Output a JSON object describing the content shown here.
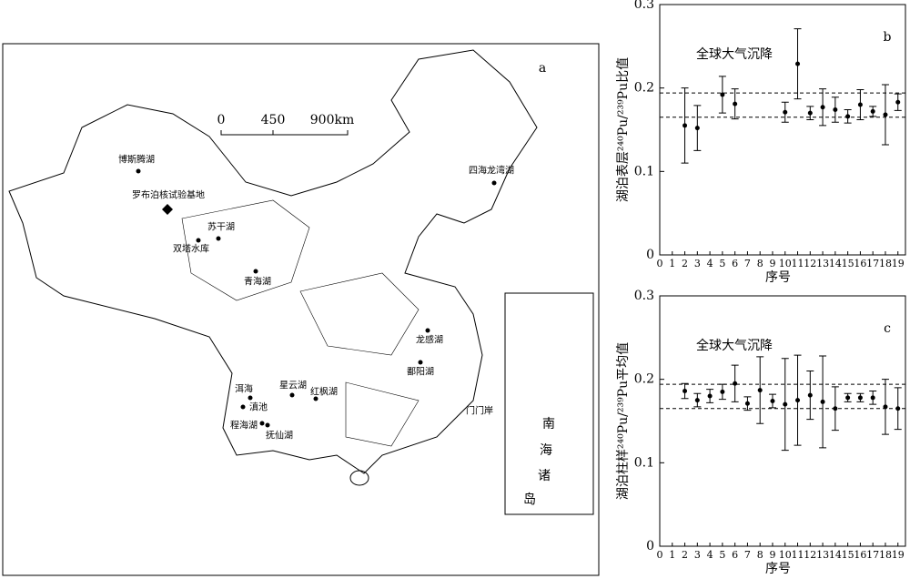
{
  "map": {
    "panel": "a",
    "scale_labels": [
      "0",
      "450",
      "900km"
    ],
    "places": [
      "博斯腾湖",
      "罗布泊核试验基地",
      "苏干湖",
      "双塔水库",
      "青海湖",
      "四海龙湾湖",
      "龙感湖",
      "鄱阳湖",
      "洱海",
      "滇池",
      "星云湖",
      "红枫湖",
      "程海湖",
      "抚仙湖",
      "门门岸"
    ],
    "inset_labels": [
      "南",
      "海",
      "诸",
      "岛"
    ]
  },
  "chart_data": [
    {
      "type": "scatter",
      "panel": "b",
      "annotation": "全球大气沉降",
      "y_label": "湖泊表层²⁴⁰Pu/²³⁹Pu比值",
      "x_label": "序号",
      "x": [
        2,
        3,
        5,
        6,
        10,
        11,
        12,
        13,
        14,
        15,
        16,
        17,
        18,
        19
      ],
      "values": [
        0.155,
        0.152,
        0.192,
        0.181,
        0.171,
        0.229,
        0.17,
        0.177,
        0.174,
        0.166,
        0.18,
        0.172,
        0.168,
        0.183
      ],
      "errors": [
        0.045,
        0.027,
        0.022,
        0.018,
        0.012,
        0.042,
        0.008,
        0.022,
        0.015,
        0.008,
        0.018,
        0.006,
        0.036,
        0.01
      ],
      "hlines": [
        0.165,
        0.194
      ],
      "color": "#000000",
      "xlim": [
        0,
        19.6
      ],
      "xticks": [
        0,
        1,
        2,
        3,
        4,
        5,
        6,
        7,
        8,
        9,
        10,
        11,
        12,
        13,
        14,
        15,
        16,
        17,
        18,
        19
      ],
      "ylim": [
        0,
        0.3
      ],
      "yticks": [
        0,
        0.1,
        0.2,
        0.3
      ]
    },
    {
      "type": "scatter",
      "panel": "c",
      "annotation": "全球大气沉降",
      "y_label": "湖泊柱样²⁴⁰Pu/²³⁹Pu平均值",
      "x_label": "序号",
      "x": [
        2,
        3,
        4,
        5,
        6,
        7,
        8,
        9,
        10,
        11,
        12,
        13,
        14,
        15,
        16,
        17,
        18,
        19
      ],
      "values": [
        0.186,
        0.175,
        0.18,
        0.185,
        0.195,
        0.171,
        0.187,
        0.174,
        0.17,
        0.175,
        0.181,
        0.173,
        0.165,
        0.178,
        0.178,
        0.178,
        0.167,
        0.165
      ],
      "errors": [
        0.009,
        0.008,
        0.008,
        0.009,
        0.022,
        0.008,
        0.04,
        0.008,
        0.055,
        0.054,
        0.029,
        0.055,
        0.026,
        0.005,
        0.005,
        0.008,
        0.033,
        0.025
      ],
      "hlines": [
        0.165,
        0.194
      ],
      "color": "#000000",
      "xlim": [
        0,
        19.6
      ],
      "xticks": [
        0,
        1,
        2,
        3,
        4,
        5,
        6,
        7,
        8,
        9,
        10,
        11,
        12,
        13,
        14,
        15,
        16,
        17,
        18,
        19
      ],
      "ylim": [
        0,
        0.3
      ],
      "yticks": [
        0,
        0.1,
        0.2,
        0.3
      ]
    }
  ]
}
